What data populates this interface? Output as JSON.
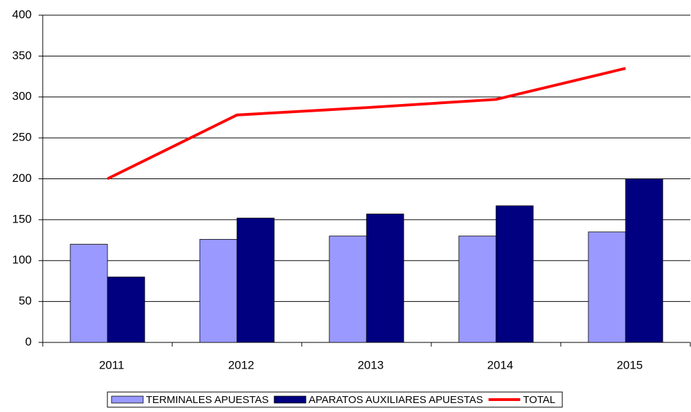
{
  "chart_data": {
    "type": "bar",
    "categories": [
      "2011",
      "2012",
      "2013",
      "2014",
      "2015"
    ],
    "series": [
      {
        "name": "TERMINALES APUESTAS",
        "color": "#9999ff",
        "values": [
          120,
          126,
          130,
          130,
          135
        ]
      },
      {
        "name": "APARATOS AUXILIARES APUESTAS",
        "color": "#000080",
        "values": [
          80,
          152,
          157,
          167,
          200
        ]
      },
      {
        "name": "TOTAL",
        "color": "#ff0000",
        "type": "line",
        "values": [
          200,
          278,
          287,
          297,
          335
        ]
      }
    ],
    "ylim": [
      0,
      400
    ],
    "yticks": [
      0,
      50,
      100,
      150,
      200,
      250,
      300,
      350,
      400
    ],
    "grid": true,
    "legend": "bottom"
  }
}
